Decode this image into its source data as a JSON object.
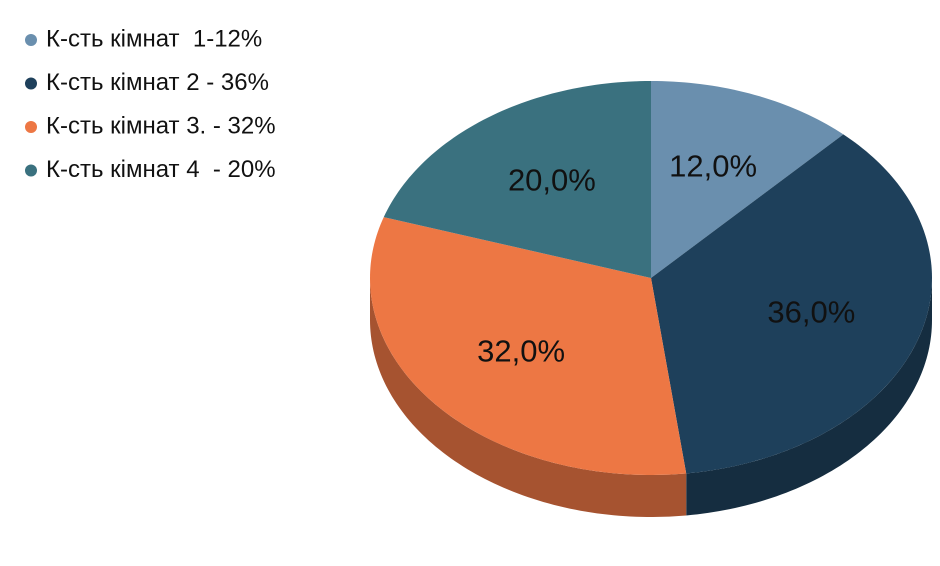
{
  "chart_data": {
    "type": "pie",
    "categories": [
      "К-сть кімнат  1-12%",
      "К-сть кімнат 2 - 36%",
      "К-сть кімнат 3. - 32%",
      "К-сть кімнат 4  - 20%"
    ],
    "values": [
      12,
      36,
      32,
      20
    ],
    "value_labels": [
      "12,0%",
      "36,0%",
      "32,0%",
      "20,0%"
    ],
    "colors": [
      "#6a8fae",
      "#1e405b",
      "#ed7744",
      "#3a717f"
    ],
    "legend": "top-left"
  }
}
